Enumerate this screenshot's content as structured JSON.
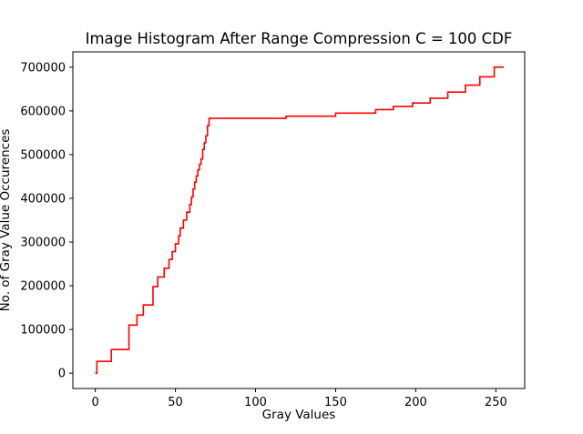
{
  "chart_data": {
    "type": "line",
    "title": "Image Histogram After Range Compression C = 100 CDF",
    "xlabel": "Gray Values",
    "ylabel": "No. of Gray Value Occurences",
    "xlim": [
      -14,
      268
    ],
    "ylim": [
      -35000,
      735000
    ],
    "x_ticks": [
      0,
      50,
      100,
      150,
      200,
      250
    ],
    "x_tick_labels": [
      "0",
      "50",
      "100",
      "150",
      "200",
      "250"
    ],
    "y_ticks": [
      0,
      100000,
      200000,
      300000,
      400000,
      500000,
      600000,
      700000
    ],
    "y_tick_labels": [
      "0",
      "100000",
      "200000",
      "300000",
      "400000",
      "500000",
      "600000",
      "700000"
    ],
    "grid": false,
    "legend": "none",
    "series": [
      {
        "color": "#ff0000",
        "drawstyle": "steps-post",
        "x": [
          0,
          1,
          10,
          21,
          26,
          30,
          36,
          39,
          43,
          46,
          48,
          50,
          52,
          53,
          55,
          57,
          59,
          60,
          61,
          62,
          63,
          64,
          65,
          66,
          67,
          68,
          69,
          70,
          71,
          119,
          150,
          175,
          186,
          198,
          209,
          220,
          231,
          240,
          249,
          255
        ],
        "y": [
          0,
          27000,
          54000,
          110000,
          133000,
          156000,
          198000,
          220000,
          240000,
          260000,
          278000,
          296000,
          314000,
          332000,
          350000,
          368000,
          386000,
          403000,
          421000,
          437000,
          451000,
          465000,
          478000,
          490000,
          512000,
          527000,
          543000,
          566000,
          583000,
          588000,
          595000,
          603000,
          610000,
          618000,
          629000,
          643000,
          659000,
          678000,
          700000,
          700000
        ]
      }
    ]
  }
}
